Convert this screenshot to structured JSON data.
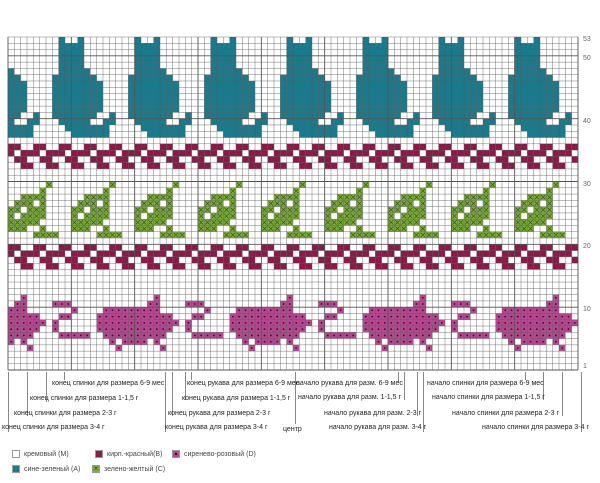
{
  "colors": {
    "M": "#ffffff",
    "A": "#1a7a8c",
    "B": "#8b1a48",
    "C": "#7cac3a",
    "D": "#b5468f",
    "grid": "#555555"
  },
  "row_numbers": [
    "53",
    "50",
    "40",
    "30",
    "20",
    "10",
    "1"
  ],
  "pattern": {
    "total_rows": 53,
    "bands": [
      {
        "color": "A",
        "top_row": 53,
        "motif": [
          ".X..X.......",
          ".XXXX.......",
          ".XXXX.......",
          ".XXXX.......",
          ".XXXX.......",
          ".XXXXX......",
          "XXXXXXX.....",
          "XXXXXXXX....",
          "XXXXXXXX....",
          "XXXXXXXX....",
          "XXXXXXXX....",
          "XXXXXXXX....",
          "XXXXXXX..X..",
          ".XXXXX..XX..",
          "..XXXXXXX...",
          "...XXXXXX..."
        ]
      },
      {
        "color": "B",
        "top_row": 36,
        "motif": [
          "XX..",
          "X.XX",
          ".XX.",
          "..XX"
        ]
      },
      {
        "color": "C",
        "top_row": 30,
        "motif": [
          "......X...",
          ".....X....",
          "..XXXX....",
          ".XXX.X....",
          "XX.XXX....",
          "X.XXXX....",
          "XXXXX.....",
          "XXX..X....",
          "....XXXX.."
        ]
      },
      {
        "color": "B",
        "top_row": 20,
        "motif": [
          "XX..",
          "X.XX",
          ".XX.",
          "..XX"
        ]
      },
      {
        "color": "D",
        "top_row": 12,
        "motif": [
          ".........X...........",
          "........XX....XXX....",
          ".XXXXXXXXX.......X...",
          "XXXXXXXXXXXX...XX....",
          "XXXXXXXXXXXXX.X......",
          "XXXXXXXXXXXX..X......",
          ".XXXXXXXXXX....XXXXX.",
          "..X.XXXX.X...........",
          "...X......X.........."
        ]
      }
    ]
  },
  "annotations": {
    "back_end": [
      "конец спинки для размера 6-9 мес",
      "конец спинки для размера 1-1,5 г",
      "конец спинки для размера 2-3 г",
      "конец спинки для размера 3-4 г"
    ],
    "sleeve_end": [
      "конец рукава для размера 6-9 мес",
      "конец рукава для размера 1-1,5 г",
      "конец рукава для размера 2-3 г",
      "конец рукава для размера 3-4 г"
    ],
    "center": "центр",
    "sleeve_start": [
      "начало рукава для разм. 6-9 мес",
      "начало рукава для разм. 1-1,5 г",
      "начало рукава для разм. 2-3 г",
      "начало рукава для разм. 3-4 г"
    ],
    "back_start": [
      "начало спинки для размера 6-9 мес",
      "начало спинки для размера 1-1,5 г",
      "начало спинки для размера 2-3 г",
      "начало спинки для размера 3-4 г"
    ]
  },
  "legend": [
    {
      "key": "M",
      "label": "кремовый (M)"
    },
    {
      "key": "B",
      "label": "кирп.-красный(B)"
    },
    {
      "key": "D",
      "label": "сиренево-розовый (D)"
    },
    {
      "key": "A",
      "label": "сине-зеленый (A)"
    },
    {
      "key": "C",
      "label": "зелено-желтый (C)"
    }
  ]
}
